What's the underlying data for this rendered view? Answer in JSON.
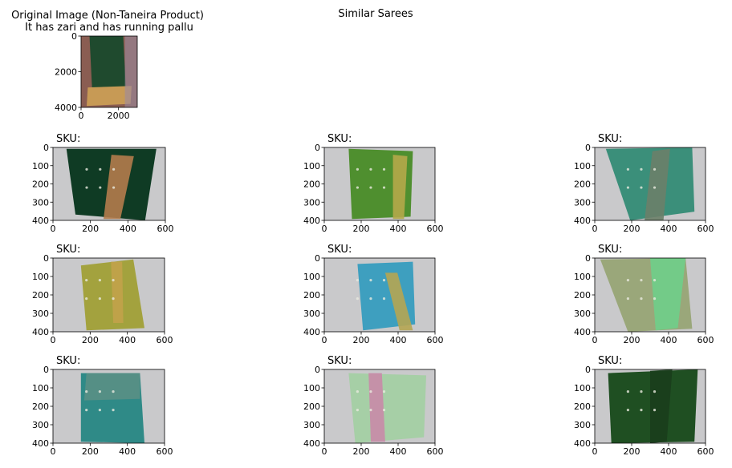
{
  "header": {
    "original_title_line1": "Original Image (Non-Taneira Product)",
    "original_title_line2": "It has zari and has running pallu",
    "similar_title": "Similar Sarees"
  },
  "colors": {
    "floor": "#c9c9cb",
    "original_floor": "#8a5d52",
    "axis": "#000000"
  },
  "chart_data": [
    {
      "type": "image",
      "role": "original",
      "title": "Original Image (Non-Taneira Product)\nIt has zari and has running pallu",
      "xlim": [
        0,
        3000
      ],
      "ylim": [
        4000,
        0
      ],
      "xticks": [
        0,
        2000
      ],
      "yticks": [
        0,
        2000,
        4000
      ],
      "saree_color": "#1f4a2e",
      "border_color": "#c79a55"
    },
    {
      "type": "image",
      "role": "similar",
      "title": "SKU:",
      "xlim": [
        0,
        600
      ],
      "ylim": [
        400,
        0
      ],
      "xticks": [
        0,
        200,
        400,
        600
      ],
      "yticks": [
        0,
        100,
        200,
        300,
        400
      ],
      "saree_color": "#0f3b24",
      "border_color": "#b47c4c"
    },
    {
      "type": "image",
      "role": "similar",
      "title": "SKU:",
      "xlim": [
        0,
        600
      ],
      "ylim": [
        400,
        0
      ],
      "xticks": [
        0,
        200,
        400,
        600
      ],
      "yticks": [
        0,
        100,
        200,
        300,
        400
      ],
      "saree_color": "#4f8f2f",
      "border_color": "#b4a84a"
    },
    {
      "type": "image",
      "role": "similar",
      "title": "SKU:",
      "xlim": [
        0,
        600
      ],
      "ylim": [
        400,
        0
      ],
      "xticks": [
        0,
        200,
        400,
        600
      ],
      "yticks": [
        0,
        100,
        200,
        300,
        400
      ],
      "saree_color": "#3b8f7a",
      "border_color": "#6c8069"
    },
    {
      "type": "image",
      "role": "similar",
      "title": "SKU:",
      "xlim": [
        0,
        600
      ],
      "ylim": [
        400,
        0
      ],
      "xticks": [
        0,
        200,
        400,
        600
      ],
      "yticks": [
        0,
        100,
        200,
        300,
        400
      ],
      "saree_color": "#a3a23e",
      "border_color": "#c2a24a"
    },
    {
      "type": "image",
      "role": "similar",
      "title": "SKU:",
      "xlim": [
        0,
        600
      ],
      "ylim": [
        400,
        0
      ],
      "xticks": [
        0,
        200,
        400,
        600
      ],
      "yticks": [
        0,
        100,
        200,
        300,
        400
      ],
      "saree_color": "#3e9fbf",
      "border_color": "#b5a552"
    },
    {
      "type": "image",
      "role": "similar",
      "title": "SKU:",
      "xlim": [
        0,
        600
      ],
      "ylim": [
        400,
        0
      ],
      "xticks": [
        0,
        200,
        400,
        600
      ],
      "yticks": [
        0,
        100,
        200,
        300,
        400
      ],
      "saree_color": "#9aa77a",
      "border_color": "#6fcf8a"
    },
    {
      "type": "image",
      "role": "similar",
      "title": "SKU:",
      "xlim": [
        0,
        600
      ],
      "ylim": [
        400,
        0
      ],
      "xticks": [
        0,
        200,
        400,
        600
      ],
      "yticks": [
        0,
        100,
        200,
        300,
        400
      ],
      "saree_color": "#2f8a87",
      "border_color": "#5a8f85"
    },
    {
      "type": "image",
      "role": "similar",
      "title": "SKU:",
      "xlim": [
        0,
        600
      ],
      "ylim": [
        400,
        0
      ],
      "xticks": [
        0,
        200,
        400,
        600
      ],
      "yticks": [
        0,
        100,
        200,
        300,
        400
      ],
      "saree_color": "#a6cfa6",
      "border_color": "#c98aa8"
    },
    {
      "type": "image",
      "role": "similar",
      "title": "SKU:",
      "xlim": [
        0,
        600
      ],
      "ylim": [
        400,
        0
      ],
      "xticks": [
        0,
        200,
        400,
        600
      ],
      "yticks": [
        0,
        100,
        200,
        300,
        400
      ],
      "saree_color": "#1f4f22",
      "border_color": "#1a3d1c"
    }
  ]
}
